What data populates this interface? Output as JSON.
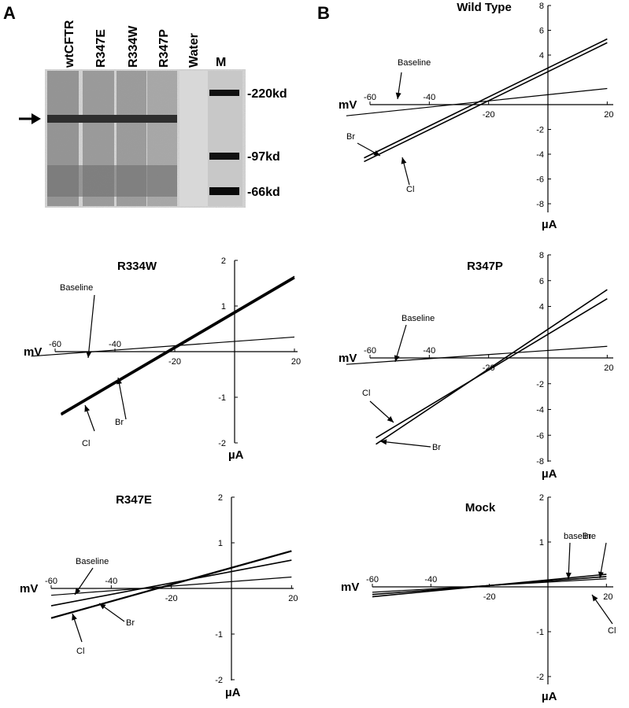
{
  "panel_a": {
    "letter": "A",
    "lanes": [
      "wtCFTR",
      "R347E",
      "R334W",
      "R347P",
      "Water",
      "M"
    ],
    "markers": [
      "-220kd",
      "-97kd",
      "-66kd"
    ]
  },
  "panel_b": {
    "letter": "B"
  },
  "chart_data": [
    {
      "type": "line",
      "title": "Wild Type",
      "xlabel": "mV",
      "ylabel": "µA",
      "xlim": [
        -60,
        20
      ],
      "ylim": [
        -8,
        8
      ],
      "x_ticks": [
        "-60",
        "-40",
        "-20",
        "20"
      ],
      "y_ticks": [
        "8",
        "6",
        "4",
        "-2",
        "-4",
        "-6",
        "-8"
      ],
      "series": [
        {
          "name": "Baseline",
          "x": [
            -68,
            20
          ],
          "y": [
            -0.9,
            1.3
          ]
        },
        {
          "name": "Br",
          "x": [
            -62,
            20
          ],
          "y": [
            -4.3,
            5.3
          ]
        },
        {
          "name": "Cl",
          "x": [
            -62,
            20
          ],
          "y": [
            -4.6,
            5.0
          ]
        }
      ],
      "annotations": [
        "Baseline",
        "Br",
        "Cl"
      ]
    },
    {
      "type": "line",
      "title": "R334W",
      "xlabel": "mV",
      "ylabel": "µA",
      "xlim": [
        -60,
        20
      ],
      "ylim": [
        -2,
        2
      ],
      "x_ticks": [
        "-60",
        "-40",
        "-20",
        "20"
      ],
      "y_ticks": [
        "2",
        "1",
        "-1",
        "-2"
      ],
      "series": [
        {
          "name": "Baseline",
          "x": [
            -68,
            20
          ],
          "y": [
            -0.1,
            0.32
          ]
        },
        {
          "name": "Br",
          "x": [
            -58,
            20
          ],
          "y": [
            -1.35,
            1.65
          ]
        },
        {
          "name": "Cl",
          "x": [
            -58,
            20
          ],
          "y": [
            -1.38,
            1.62
          ]
        }
      ],
      "annotations": [
        "Baseline",
        "Br",
        "Cl"
      ]
    },
    {
      "type": "line",
      "title": "R347P",
      "xlabel": "mV",
      "ylabel": "µA",
      "xlim": [
        -60,
        20
      ],
      "ylim": [
        -8,
        8
      ],
      "x_ticks": [
        "-60",
        "-40",
        "-20",
        "20"
      ],
      "y_ticks": [
        "8",
        "6",
        "4",
        "-2",
        "-4",
        "-6",
        "-8"
      ],
      "series": [
        {
          "name": "Baseline",
          "x": [
            -68,
            20
          ],
          "y": [
            -0.5,
            0.9
          ]
        },
        {
          "name": "Cl",
          "x": [
            -58,
            20
          ],
          "y": [
            -6.2,
            4.6
          ]
        },
        {
          "name": "Br",
          "x": [
            -58,
            20
          ],
          "y": [
            -6.7,
            5.3
          ]
        }
      ],
      "annotations": [
        "Baseline",
        "Cl",
        "Br"
      ]
    },
    {
      "type": "line",
      "title": "R347E",
      "xlabel": "mV",
      "ylabel": "µA",
      "xlim": [
        -60,
        20
      ],
      "ylim": [
        -2,
        2
      ],
      "x_ticks": [
        "-60",
        "-40",
        "-20",
        "20"
      ],
      "y_ticks": [
        "2",
        "1",
        "-1",
        "-2"
      ],
      "series": [
        {
          "name": "Baseline",
          "x": [
            -60,
            20
          ],
          "y": [
            -0.15,
            0.25
          ]
        },
        {
          "name": "Br",
          "x": [
            -60,
            20
          ],
          "y": [
            -0.38,
            0.62
          ]
        },
        {
          "name": "Cl",
          "x": [
            -60,
            20
          ],
          "y": [
            -0.65,
            0.82
          ]
        }
      ],
      "annotations": [
        "Baseline",
        "Br",
        "Cl"
      ]
    },
    {
      "type": "line",
      "title": "Mock",
      "xlabel": "mV",
      "ylabel": "µA",
      "xlim": [
        -60,
        20
      ],
      "ylim": [
        -2,
        2
      ],
      "x_ticks": [
        "-60",
        "-40",
        "-20",
        "20"
      ],
      "y_ticks": [
        "2",
        "1",
        "-1",
        "-2"
      ],
      "series": [
        {
          "name": "baseline",
          "x": [
            -60,
            20
          ],
          "y": [
            -0.12,
            0.18
          ]
        },
        {
          "name": "Br",
          "x": [
            -60,
            20
          ],
          "y": [
            -0.17,
            0.23
          ]
        },
        {
          "name": "Cl",
          "x": [
            -60,
            20
          ],
          "y": [
            -0.22,
            0.28
          ]
        }
      ],
      "annotations": [
        "Br",
        "baseline",
        "Cl"
      ]
    }
  ]
}
